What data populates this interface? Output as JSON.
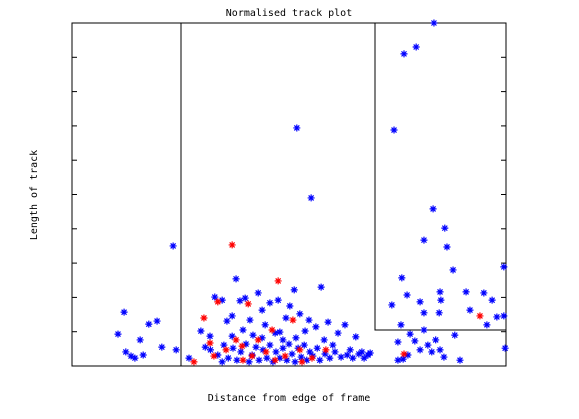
{
  "chart_data": {
    "type": "scatter",
    "title": "Normalised track plot",
    "x_label": "Distance from edge of frame",
    "y_label": "Length of track",
    "xlim": [
      0,
      100
    ],
    "ylim": [
      0,
      10
    ],
    "yticks": [
      1,
      2,
      3,
      4,
      5,
      6,
      7,
      8,
      9
    ],
    "series": [
      {
        "name": "blue",
        "color": "#0000ff",
        "x": [
          12.0,
          10.6,
          12.4,
          13.6,
          14.5,
          15.7,
          16.4,
          17.7,
          19.6,
          20.7,
          23.3,
          24.0,
          26.96,
          29.7,
          30.7,
          31.8,
          32.9,
          34.6,
          35.7,
          36.9,
          37.8,
          38.7,
          39.4,
          39.9,
          41.0,
          41.7,
          42.9,
          43.8,
          44.5,
          45.6,
          46.8,
          47.5,
          48.6,
          49.3,
          50.2,
          51.2,
          51.8,
          52.5,
          53.7,
          54.6,
          55.1,
          56.2,
          57.4,
          58.1,
          59.0,
          60.1,
          61.3,
          62.9,
          64.1,
          65.4,
          66.8,
          68.2,
          31.9,
          33.6,
          35.0,
          36.0,
          37.1,
          38.0,
          38.9,
          40.1,
          40.8,
          41.5,
          42.4,
          43.1,
          44.0,
          44.9,
          45.6,
          46.3,
          47.0,
          47.9,
          48.6,
          49.5,
          50.0,
          50.7,
          51.4,
          52.1,
          52.8,
          53.5,
          54.1,
          54.8,
          55.5,
          56.5,
          57.1,
          58.3,
          59.4,
          60.6,
          62.0,
          63.4,
          64.7,
          66.1,
          67.3,
          68.7,
          34.6,
          36.9,
          43.8,
          47.9,
          51.6,
          74.2,
          76.5,
          79.3,
          83.4,
          83.2,
          85.9,
          81.1,
          86.4,
          76.0,
          73.7,
          77.2,
          80.2,
          81.1,
          84.8,
          85.0,
          84.6,
          87.8,
          90.8,
          91.7,
          94.9,
          96.8,
          97.9,
          99.5,
          99.5,
          95.6,
          75.8,
          77.9,
          79.0,
          81.1,
          82.0,
          82.9,
          83.8,
          84.8,
          85.7,
          80.2,
          77.4,
          75.1,
          76.3,
          88.2,
          89.4,
          99.8,
          75.1
        ],
        "values": [
          1.57,
          0.93,
          0.41,
          0.29,
          0.23,
          0.76,
          0.32,
          1.22,
          1.31,
          0.55,
          3.5,
          0.47,
          0.23,
          1.02,
          0.55,
          0.87,
          2.01,
          1.92,
          1.31,
          1.46,
          2.54,
          1.9,
          1.05,
          1.98,
          1.34,
          0.9,
          2.13,
          1.63,
          1.2,
          1.84,
          0.96,
          1.92,
          0.76,
          1.4,
          1.75,
          2.22,
          6.94,
          1.52,
          1.02,
          1.34,
          4.9,
          1.14,
          2.3,
          0.76,
          1.28,
          0.61,
          0.96,
          1.2,
          0.47,
          0.85,
          0.41,
          0.32,
          0.47,
          0.32,
          0.61,
          0.23,
          0.52,
          0.17,
          0.41,
          0.64,
          0.12,
          0.32,
          0.55,
          0.17,
          0.47,
          0.23,
          0.61,
          0.12,
          0.41,
          0.23,
          0.52,
          0.17,
          0.64,
          0.35,
          0.12,
          0.52,
          0.26,
          0.61,
          0.17,
          0.41,
          0.29,
          0.52,
          0.17,
          0.35,
          0.23,
          0.41,
          0.26,
          0.32,
          0.23,
          0.35,
          0.23,
          0.38,
          0.12,
          0.87,
          0.82,
          0.99,
          0.82,
          6.88,
          9.1,
          9.3,
          10.0,
          4.58,
          4.02,
          3.67,
          3.47,
          2.57,
          1.78,
          2.07,
          1.87,
          1.55,
          2.16,
          1.92,
          1.55,
          2.8,
          2.16,
          1.63,
          2.13,
          1.92,
          1.43,
          2.89,
          1.46,
          1.2,
          1.2,
          0.93,
          0.73,
          1.05,
          0.61,
          0.41,
          0.76,
          0.47,
          0.26,
          0.47,
          0.32,
          0.7,
          0.2,
          0.9,
          0.17,
          0.52,
          0.17
        ]
      },
      {
        "name": "red",
        "color": "#ff0000",
        "x": [
          36.9,
          30.4,
          33.6,
          40.6,
          47.5,
          50.9,
          46.1,
          42.9,
          39.2,
          35.5,
          32.7,
          31.8,
          41.5,
          44.7,
          49.1,
          52.5,
          55.3,
          58.5,
          28.1,
          53.0,
          76.5,
          94.0,
          39.4,
          46.8,
          37.8
        ],
        "values": [
          3.53,
          1.4,
          1.87,
          1.81,
          2.48,
          1.34,
          1.05,
          0.76,
          0.58,
          0.47,
          0.29,
          0.67,
          0.29,
          0.41,
          0.29,
          0.47,
          0.23,
          0.47,
          0.12,
          0.12,
          0.35,
          1.46,
          0.17,
          0.17,
          0.76
        ]
      }
    ]
  }
}
